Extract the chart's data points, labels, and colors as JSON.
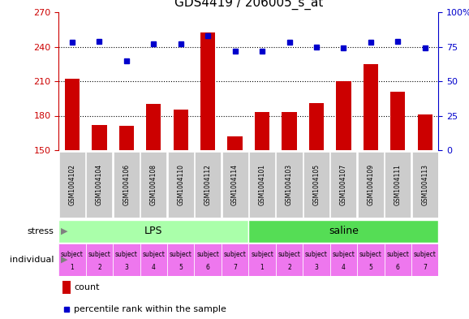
{
  "title": "GDS4419 / 206005_s_at",
  "samples": [
    "GSM1004102",
    "GSM1004104",
    "GSM1004106",
    "GSM1004108",
    "GSM1004110",
    "GSM1004112",
    "GSM1004114",
    "GSM1004101",
    "GSM1004103",
    "GSM1004105",
    "GSM1004107",
    "GSM1004109",
    "GSM1004111",
    "GSM1004113"
  ],
  "counts": [
    212,
    172,
    171,
    190,
    185,
    252,
    162,
    183,
    183,
    191,
    210,
    225,
    201,
    181
  ],
  "percentiles": [
    78,
    79,
    65,
    77,
    77,
    83,
    72,
    72,
    78,
    75,
    74,
    78,
    79,
    74
  ],
  "individuals": [
    "1",
    "2",
    "3",
    "4",
    "5",
    "6",
    "7",
    "1",
    "2",
    "3",
    "4",
    "5",
    "6",
    "7"
  ],
  "lps_count": 7,
  "saline_count": 7,
  "ylim_left": [
    150,
    270
  ],
  "ylim_right": [
    0,
    100
  ],
  "yticks_left": [
    150,
    180,
    210,
    240,
    270
  ],
  "yticks_right": [
    0,
    25,
    50,
    75,
    100
  ],
  "ytick_labels_right": [
    "0",
    "25",
    "50",
    "75",
    "100%"
  ],
  "bar_color": "#cc0000",
  "dot_color": "#0000cc",
  "lps_color": "#aaffaa",
  "saline_color": "#55dd55",
  "individual_color": "#ee77ee",
  "xticklabel_bg": "#cccccc",
  "title_fontsize": 11,
  "axis_fontsize": 9,
  "tick_fontsize": 8,
  "label_fontsize": 8,
  "sample_fontsize": 5.5,
  "indiv_fontsize": 5.5
}
